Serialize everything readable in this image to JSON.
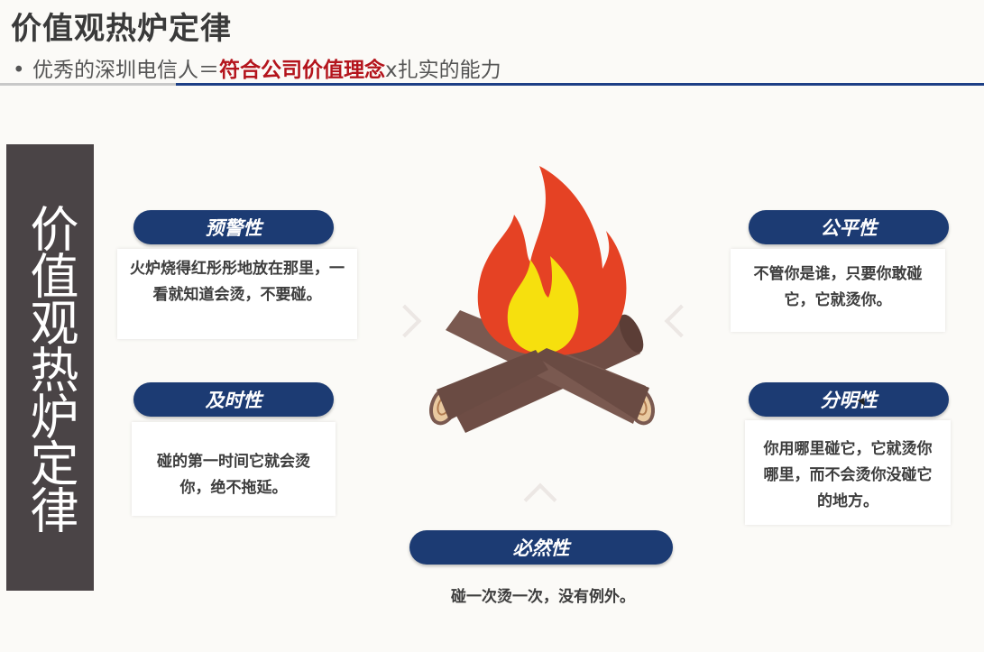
{
  "header": {
    "title": "价值观热炉定律",
    "subtitle_prefix": "优秀的深圳电信人＝",
    "subtitle_highlight": "符合公司价值理念",
    "subtitle_suffix": "x扎实的能力",
    "bullet": "•"
  },
  "side_title": "价值观热炉定律",
  "principles": [
    {
      "label": "预警性",
      "text": "火炉烧得红彤彤地放在那里，一看就知道会烫，不要碰。"
    },
    {
      "label": "及时性",
      "text": "碰的第一时间它就会烫你，绝不拖延。"
    },
    {
      "label": "公平性",
      "text": "不管你是谁，只要你敢碰它，它就烫你。"
    },
    {
      "label": "分明性",
      "text": "你用哪里碰它，它就烫你哪里，而不会烫你没碰它的地方。"
    },
    {
      "label": "必然性",
      "text": "碰一次烫一次，没有例外。"
    }
  ],
  "colors": {
    "pill": "#1c3b73",
    "accent": "#b4141c",
    "side_box": "#4a4446"
  },
  "icons": {
    "center": "campfire-icon"
  }
}
